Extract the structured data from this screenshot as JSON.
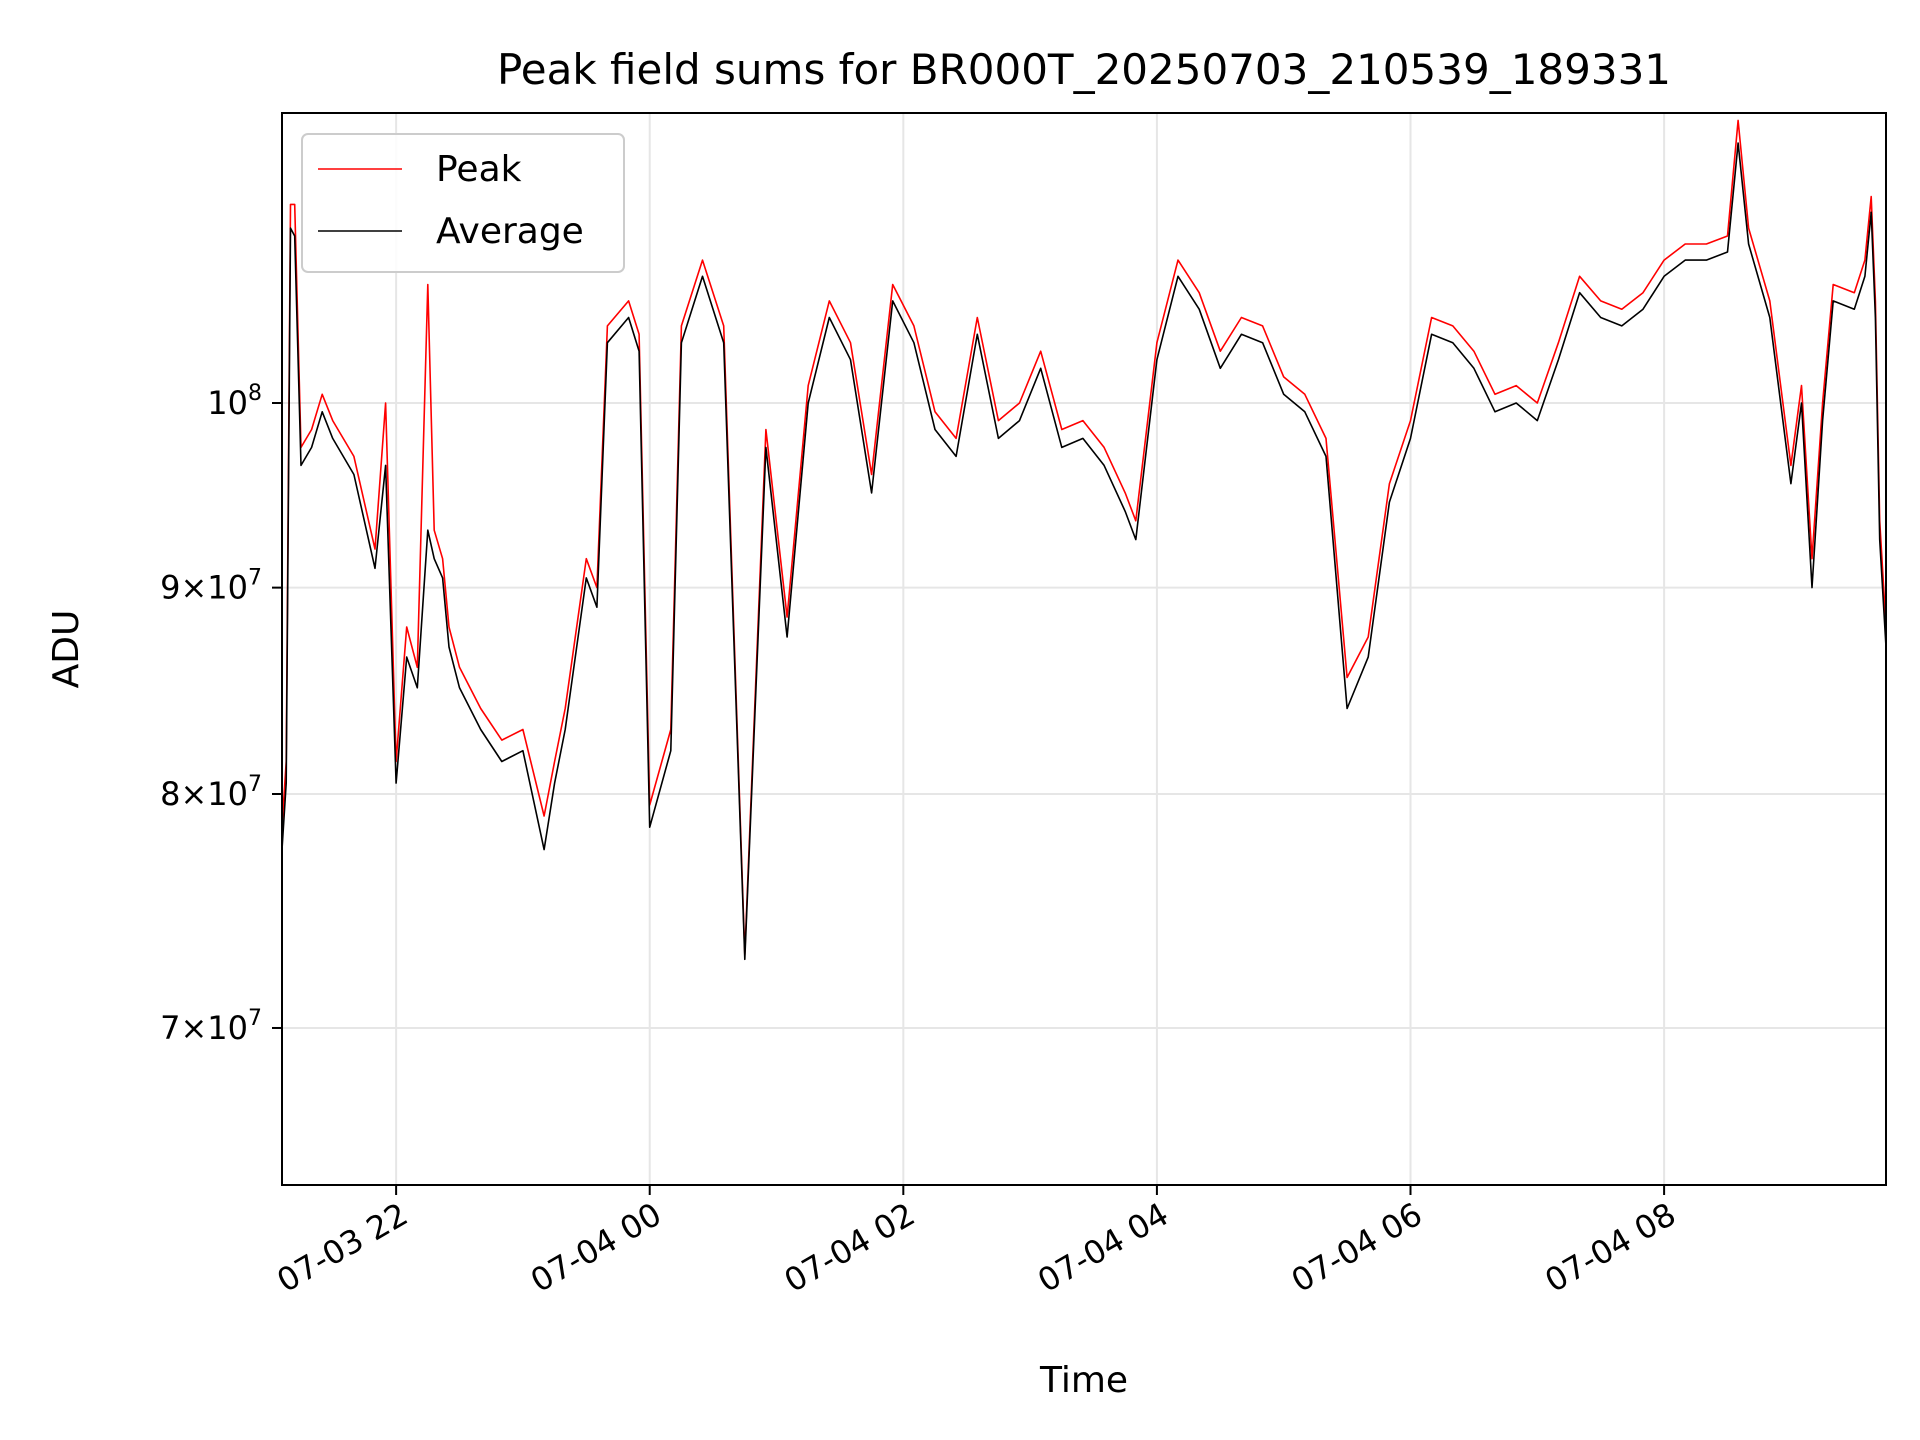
{
  "chart_data": {
    "type": "line",
    "title": "Peak field sums for BR000T_20250703_210539_189331",
    "xlabel": "Time",
    "ylabel": "ADU",
    "yscale": "log",
    "ylim": [
      64000000,
      118000000
    ],
    "xlim": [
      "2025-07-03 21:06",
      "2025-07-04 09:45"
    ],
    "grid": true,
    "legend_position": "top-left",
    "x_ticks": [
      {
        "t": "2025-07-03 22:00",
        "label": "07-03 22"
      },
      {
        "t": "2025-07-04 00:00",
        "label": "07-04 00"
      },
      {
        "t": "2025-07-04 02:00",
        "label": "07-04 02"
      },
      {
        "t": "2025-07-04 04:00",
        "label": "07-04 04"
      },
      {
        "t": "2025-07-04 06:00",
        "label": "07-04 06"
      },
      {
        "t": "2025-07-04 08:00",
        "label": "07-04 08"
      }
    ],
    "y_ticks": [
      {
        "value": 70000000,
        "mant": "7",
        "exp": "7"
      },
      {
        "value": 80000000,
        "mant": "8",
        "exp": "7"
      },
      {
        "value": 90000000,
        "mant": "9",
        "exp": "7"
      },
      {
        "value": 100000000,
        "mant": "",
        "exp": "8"
      }
    ],
    "series": [
      {
        "name": "Peak",
        "color": "#ff0000",
        "t": [
          "2025-07-03 21:06",
          "2025-07-03 21:08",
          "2025-07-03 21:10",
          "2025-07-03 21:12",
          "2025-07-03 21:15",
          "2025-07-03 21:20",
          "2025-07-03 21:25",
          "2025-07-03 21:30",
          "2025-07-03 21:40",
          "2025-07-03 21:50",
          "2025-07-03 21:55",
          "2025-07-03 22:00",
          "2025-07-03 22:05",
          "2025-07-03 22:10",
          "2025-07-03 22:15",
          "2025-07-03 22:18",
          "2025-07-03 22:22",
          "2025-07-03 22:25",
          "2025-07-03 22:30",
          "2025-07-03 22:40",
          "2025-07-03 22:50",
          "2025-07-03 23:00",
          "2025-07-03 23:10",
          "2025-07-03 23:15",
          "2025-07-03 23:20",
          "2025-07-03 23:30",
          "2025-07-03 23:35",
          "2025-07-03 23:40",
          "2025-07-03 23:50",
          "2025-07-03 23:55",
          "2025-07-04 00:00",
          "2025-07-04 00:10",
          "2025-07-04 00:15",
          "2025-07-04 00:25",
          "2025-07-04 00:35",
          "2025-07-04 00:45",
          "2025-07-04 00:55",
          "2025-07-04 01:05",
          "2025-07-04 01:15",
          "2025-07-04 01:25",
          "2025-07-04 01:35",
          "2025-07-04 01:45",
          "2025-07-04 01:55",
          "2025-07-04 02:05",
          "2025-07-04 02:15",
          "2025-07-04 02:25",
          "2025-07-04 02:35",
          "2025-07-04 02:45",
          "2025-07-04 02:55",
          "2025-07-04 03:05",
          "2025-07-04 03:15",
          "2025-07-04 03:25",
          "2025-07-04 03:35",
          "2025-07-04 03:45",
          "2025-07-04 03:50",
          "2025-07-04 04:00",
          "2025-07-04 04:10",
          "2025-07-04 04:20",
          "2025-07-04 04:30",
          "2025-07-04 04:40",
          "2025-07-04 04:50",
          "2025-07-04 05:00",
          "2025-07-04 05:10",
          "2025-07-04 05:20",
          "2025-07-04 05:30",
          "2025-07-04 05:40",
          "2025-07-04 05:50",
          "2025-07-04 06:00",
          "2025-07-04 06:10",
          "2025-07-04 06:20",
          "2025-07-04 06:30",
          "2025-07-04 06:40",
          "2025-07-04 06:50",
          "2025-07-04 07:00",
          "2025-07-04 07:10",
          "2025-07-04 07:20",
          "2025-07-04 07:30",
          "2025-07-04 07:40",
          "2025-07-04 07:50",
          "2025-07-04 08:00",
          "2025-07-04 08:10",
          "2025-07-04 08:20",
          "2025-07-04 08:30",
          "2025-07-04 08:35",
          "2025-07-04 08:40",
          "2025-07-04 08:50",
          "2025-07-04 09:00",
          "2025-07-04 09:05",
          "2025-07-04 09:10",
          "2025-07-04 09:15",
          "2025-07-04 09:20",
          "2025-07-04 09:30",
          "2025-07-04 09:35",
          "2025-07-04 09:38",
          "2025-07-04 09:40",
          "2025-07-04 09:42",
          "2025-07-04 09:45"
        ],
        "y": [
          78500000,
          81500000,
          112000000,
          112000000,
          97500000,
          98500000,
          100500000,
          99000000,
          97000000,
          92000000,
          100000000,
          81500000,
          88000000,
          86000000,
          107000000,
          93000000,
          91500000,
          88000000,
          86000000,
          84000000,
          82500000,
          83000000,
          79000000,
          81500000,
          84000000,
          91500000,
          90000000,
          104500000,
          106000000,
          104000000,
          79500000,
          83000000,
          104500000,
          108500000,
          104500000,
          73000000,
          98500000,
          88500000,
          101000000,
          106000000,
          103500000,
          96000000,
          107000000,
          104500000,
          99500000,
          98000000,
          105000000,
          99000000,
          100000000,
          103000000,
          98500000,
          99000000,
          97500000,
          95000000,
          93500000,
          103500000,
          108500000,
          106500000,
          103000000,
          105000000,
          104500000,
          101500000,
          100500000,
          98000000,
          85500000,
          87500000,
          95500000,
          99000000,
          105000000,
          104500000,
          103000000,
          100500000,
          101000000,
          100000000,
          103500000,
          107500000,
          106000000,
          105500000,
          106500000,
          108500000,
          109500000,
          109500000,
          110000000,
          117500000,
          110500000,
          106000000,
          96500000,
          101000000,
          91500000,
          100000000,
          107000000,
          106500000,
          108500000,
          112500000,
          106000000,
          93500000,
          88000000
        ]
      },
      {
        "name": "Average",
        "color": "#000000",
        "t": [
          "2025-07-03 21:06",
          "2025-07-03 21:08",
          "2025-07-03 21:10",
          "2025-07-03 21:12",
          "2025-07-03 21:15",
          "2025-07-03 21:20",
          "2025-07-03 21:25",
          "2025-07-03 21:30",
          "2025-07-03 21:40",
          "2025-07-03 21:50",
          "2025-07-03 21:55",
          "2025-07-03 22:00",
          "2025-07-03 22:05",
          "2025-07-03 22:10",
          "2025-07-03 22:15",
          "2025-07-03 22:18",
          "2025-07-03 22:22",
          "2025-07-03 22:25",
          "2025-07-03 22:30",
          "2025-07-03 22:40",
          "2025-07-03 22:50",
          "2025-07-03 23:00",
          "2025-07-03 23:10",
          "2025-07-03 23:15",
          "2025-07-03 23:20",
          "2025-07-03 23:30",
          "2025-07-03 23:35",
          "2025-07-03 23:40",
          "2025-07-03 23:50",
          "2025-07-03 23:55",
          "2025-07-04 00:00",
          "2025-07-04 00:10",
          "2025-07-04 00:15",
          "2025-07-04 00:25",
          "2025-07-04 00:35",
          "2025-07-04 00:45",
          "2025-07-04 00:55",
          "2025-07-04 01:05",
          "2025-07-04 01:15",
          "2025-07-04 01:25",
          "2025-07-04 01:35",
          "2025-07-04 01:45",
          "2025-07-04 01:55",
          "2025-07-04 02:05",
          "2025-07-04 02:15",
          "2025-07-04 02:25",
          "2025-07-04 02:35",
          "2025-07-04 02:45",
          "2025-07-04 02:55",
          "2025-07-04 03:05",
          "2025-07-04 03:15",
          "2025-07-04 03:25",
          "2025-07-04 03:35",
          "2025-07-04 03:45",
          "2025-07-04 03:50",
          "2025-07-04 04:00",
          "2025-07-04 04:10",
          "2025-07-04 04:20",
          "2025-07-04 04:30",
          "2025-07-04 04:40",
          "2025-07-04 04:50",
          "2025-07-04 05:00",
          "2025-07-04 05:10",
          "2025-07-04 05:20",
          "2025-07-04 05:30",
          "2025-07-04 05:40",
          "2025-07-04 05:50",
          "2025-07-04 06:00",
          "2025-07-04 06:10",
          "2025-07-04 06:20",
          "2025-07-04 06:30",
          "2025-07-04 06:40",
          "2025-07-04 06:50",
          "2025-07-04 07:00",
          "2025-07-04 07:10",
          "2025-07-04 07:20",
          "2025-07-04 07:30",
          "2025-07-04 07:40",
          "2025-07-04 07:50",
          "2025-07-04 08:00",
          "2025-07-04 08:10",
          "2025-07-04 08:20",
          "2025-07-04 08:30",
          "2025-07-04 08:35",
          "2025-07-04 08:40",
          "2025-07-04 08:50",
          "2025-07-04 09:00",
          "2025-07-04 09:05",
          "2025-07-04 09:10",
          "2025-07-04 09:15",
          "2025-07-04 09:20",
          "2025-07-04 09:30",
          "2025-07-04 09:35",
          "2025-07-04 09:38",
          "2025-07-04 09:40",
          "2025-07-04 09:42",
          "2025-07-04 09:45"
        ],
        "y": [
          77500000,
          80500000,
          110500000,
          110000000,
          96500000,
          97500000,
          99500000,
          98000000,
          96000000,
          91000000,
          96500000,
          80500000,
          86500000,
          85000000,
          93000000,
          91500000,
          90500000,
          87000000,
          85000000,
          83000000,
          81500000,
          82000000,
          77500000,
          80500000,
          83000000,
          90500000,
          89000000,
          103500000,
          105000000,
          103000000,
          78500000,
          82000000,
          103500000,
          107500000,
          103500000,
          72800000,
          97500000,
          87500000,
          100000000,
          105000000,
          102500000,
          95000000,
          106000000,
          103500000,
          98500000,
          97000000,
          104000000,
          98000000,
          99000000,
          102000000,
          97500000,
          98000000,
          96500000,
          94000000,
          92500000,
          102500000,
          107500000,
          105500000,
          102000000,
          104000000,
          103500000,
          100500000,
          99500000,
          97000000,
          84000000,
          86500000,
          94500000,
          98000000,
          104000000,
          103500000,
          102000000,
          99500000,
          100000000,
          99000000,
          102500000,
          106500000,
          105000000,
          104500000,
          105500000,
          107500000,
          108500000,
          108500000,
          109000000,
          116000000,
          109500000,
          105000000,
          95500000,
          100000000,
          90000000,
          99000000,
          106000000,
          105500000,
          107500000,
          111500000,
          105000000,
          92500000,
          87000000
        ]
      }
    ]
  }
}
